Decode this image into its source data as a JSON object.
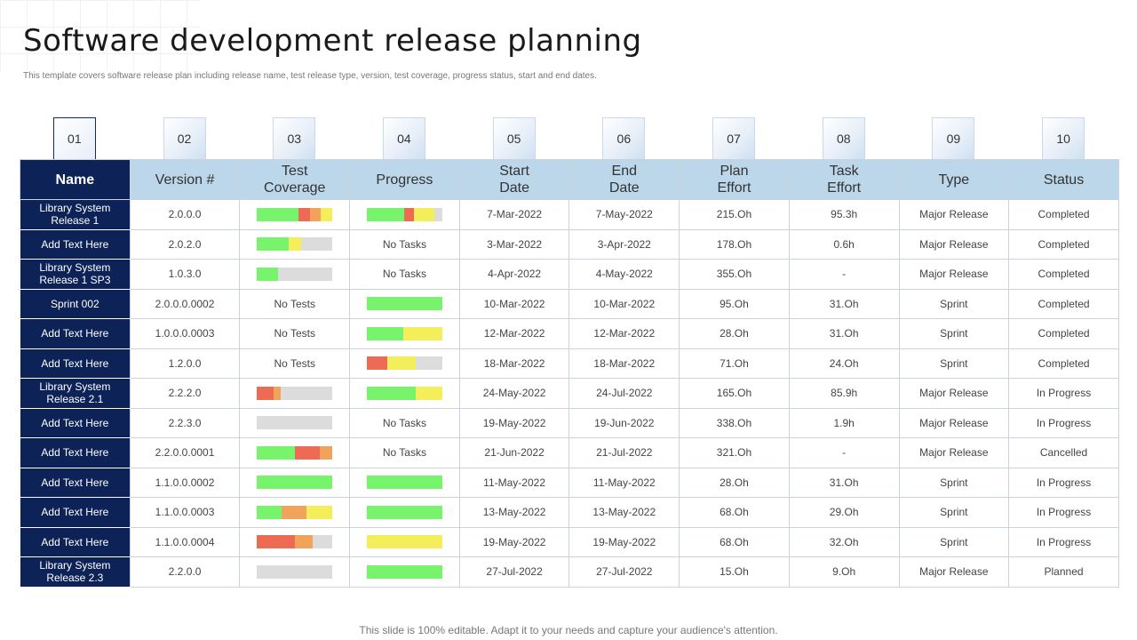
{
  "header": {
    "title": "Software development release planning",
    "subtitle": "This template covers software release plan including release name, test release type, version, test coverage, progress status, start and end dates."
  },
  "numbers": [
    "01",
    "02",
    "03",
    "04",
    "05",
    "06",
    "07",
    "08",
    "09",
    "10"
  ],
  "columns": [
    "Name",
    "Version #",
    "Test\nCoverage",
    "Progress",
    "Start\nDate",
    "End\nDate",
    "Plan\nEffort",
    "Task\nEffort",
    "Type",
    "Status"
  ],
  "colors": {
    "green": "#77f36c",
    "red": "#ee6b53",
    "orange": "#f2a35b",
    "yellow": "#f3ee5a",
    "gray": "#dcdcdc",
    "navy": "#0d2257",
    "header_blue": "#bcd6ea"
  },
  "rows": [
    {
      "name": "Library System Release 1",
      "version": "2.0.0.0",
      "coverage": {
        "segments": [
          [
            "green",
            0.55
          ],
          [
            "red",
            0.15
          ],
          [
            "orange",
            0.14
          ],
          [
            "yellow",
            0.16
          ]
        ]
      },
      "progress": {
        "segments": [
          [
            "green",
            0.5
          ],
          [
            "red",
            0.12
          ],
          [
            "yellow",
            0.28
          ]
        ]
      },
      "start": "7-Mar-2022",
      "end": "7-May-2022",
      "plan": "215.Oh",
      "task": "95.3h",
      "type": "Major Release",
      "status": "Completed"
    },
    {
      "name": "Add Text Here",
      "version": "2.0.2.0",
      "coverage": {
        "segments": [
          [
            "green",
            0.42
          ],
          [
            "yellow",
            0.16
          ]
        ]
      },
      "progress": {
        "text": "No Tasks"
      },
      "start": "3-Mar-2022",
      "end": "3-Apr-2022",
      "plan": "178.Oh",
      "task": "0.6h",
      "type": "Major Release",
      "status": "Completed"
    },
    {
      "name": "Library System Release 1 SP3",
      "version": "1.0.3.0",
      "coverage": {
        "segments": [
          [
            "green",
            0.28
          ]
        ]
      },
      "progress": {
        "text": "No Tasks"
      },
      "start": "4-Apr-2022",
      "end": "4-May-2022",
      "plan": "355.Oh",
      "task": "-",
      "type": "Major Release",
      "status": "Completed"
    },
    {
      "name": "Sprint 002",
      "version": "2.0.0.0.0002",
      "coverage": {
        "text": "No Tests"
      },
      "progress": {
        "segments": [
          [
            "green",
            1.0
          ]
        ]
      },
      "start": "10-Mar-2022",
      "end": "10-Mar-2022",
      "plan": "95.Oh",
      "task": "31.Oh",
      "type": "Sprint",
      "status": "Completed"
    },
    {
      "name": "Add Text Here",
      "version": "1.0.0.0.0003",
      "coverage": {
        "text": "No Tests"
      },
      "progress": {
        "segments": [
          [
            "green",
            0.48
          ],
          [
            "yellow",
            0.52
          ]
        ]
      },
      "start": "12-Mar-2022",
      "end": "12-Mar-2022",
      "plan": "28.Oh",
      "task": "31.Oh",
      "type": "Sprint",
      "status": "Completed"
    },
    {
      "name": "Add Text Here",
      "version": "1.2.0.0",
      "coverage": {
        "text": "No Tests"
      },
      "progress": {
        "segments": [
          [
            "red",
            0.27
          ],
          [
            "yellow",
            0.38
          ]
        ]
      },
      "start": "18-Mar-2022",
      "end": "18-Mar-2022",
      "plan": "71.Oh",
      "task": "24.Oh",
      "type": "Sprint",
      "status": "Completed"
    },
    {
      "name": "Library System Release 2.1",
      "version": "2.2.2.0",
      "coverage": {
        "segments": [
          [
            "red",
            0.22
          ],
          [
            "orange",
            0.1
          ]
        ]
      },
      "progress": {
        "segments": [
          [
            "green",
            0.65
          ],
          [
            "yellow",
            0.35
          ]
        ]
      },
      "start": "24-May-2022",
      "end": "24-Jul-2022",
      "plan": "165.Oh",
      "task": "85.9h",
      "type": "Major Release",
      "status": "In Progress"
    },
    {
      "name": "Add Text Here",
      "version": "2.2.3.0",
      "coverage": {
        "segments": []
      },
      "progress": {
        "text": "No Tasks"
      },
      "start": "19-May-2022",
      "end": "19-Jun-2022",
      "plan": "338.Oh",
      "task": "1.9h",
      "type": "Major Release",
      "status": "In Progress"
    },
    {
      "name": "Add Text Here",
      "version": "2.2.0.0.0001",
      "coverage": {
        "segments": [
          [
            "green",
            0.5
          ],
          [
            "red",
            0.33
          ],
          [
            "orange",
            0.17
          ]
        ]
      },
      "progress": {
        "text": "No Tasks"
      },
      "start": "21-Jun-2022",
      "end": "21-Jul-2022",
      "plan": "321.Oh",
      "task": "-",
      "type": "Major Release",
      "status": "Cancelled"
    },
    {
      "name": "Add Text Here",
      "version": "1.1.0.0.0002",
      "coverage": {
        "segments": [
          [
            "green",
            1.0
          ]
        ]
      },
      "progress": {
        "segments": [
          [
            "green",
            1.0
          ]
        ]
      },
      "start": "11-May-2022",
      "end": "11-May-2022",
      "plan": "28.Oh",
      "task": "31.Oh",
      "type": "Sprint",
      "status": "In Progress"
    },
    {
      "name": "Add Text Here",
      "version": "1.1.0.0.0003",
      "coverage": {
        "segments": [
          [
            "green",
            0.33
          ],
          [
            "orange",
            0.33
          ],
          [
            "yellow",
            0.34
          ]
        ]
      },
      "progress": {
        "segments": [
          [
            "green",
            1.0
          ]
        ]
      },
      "start": "13-May-2022",
      "end": "13-May-2022",
      "plan": "68.Oh",
      "task": "29.Oh",
      "type": "Sprint",
      "status": "In Progress"
    },
    {
      "name": "Add Text Here",
      "version": "1.1.0.0.0004",
      "coverage": {
        "segments": [
          [
            "red",
            0.5
          ],
          [
            "orange",
            0.24
          ]
        ]
      },
      "progress": {
        "segments": [
          [
            "yellow",
            1.0
          ]
        ]
      },
      "start": "19-May-2022",
      "end": "19-May-2022",
      "plan": "68.Oh",
      "task": "32.Oh",
      "type": "Sprint",
      "status": "In Progress"
    },
    {
      "name": "Library System Release 2.3",
      "version": "2.2.0.0",
      "coverage": {
        "segments": []
      },
      "progress": {
        "segments": [
          [
            "green",
            1.0
          ]
        ]
      },
      "start": "27-Jul-2022",
      "end": "27-Jul-2022",
      "plan": "15.Oh",
      "task": "9.Oh",
      "type": "Major Release",
      "status": "Planned"
    }
  ],
  "footer": "This slide is 100% editable. Adapt it to your needs and capture your audience's attention."
}
